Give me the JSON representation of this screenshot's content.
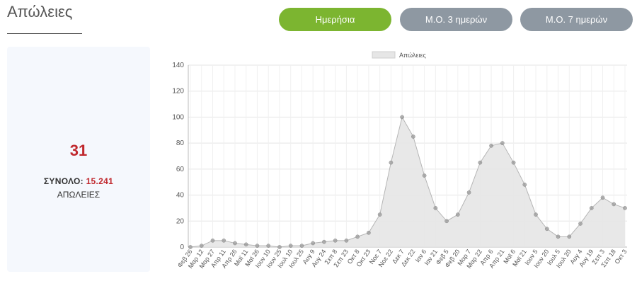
{
  "header": {
    "title": "Απώλειες"
  },
  "tabs": [
    {
      "label": "Ημερήσια",
      "active": true
    },
    {
      "label": "Μ.Ο. 3 ημερών",
      "active": false
    },
    {
      "label": "Μ.Ο. 7 ημερών",
      "active": false
    }
  ],
  "colors": {
    "active_tab": "#7cb530",
    "inactive_tab": "#8e98a2",
    "highlight": "#c0282d",
    "series_fill": "#e6e6e6",
    "series_point": "#9a9a9a"
  },
  "stats": {
    "value": "31",
    "total_label": "ΣΥΝΟΛΟ:",
    "total_value": "15.241",
    "caption": "ΑΠΩΛΕΙΕΣ"
  },
  "chart_data": {
    "type": "area",
    "legend": "top",
    "grid": true,
    "ylim": [
      0,
      140
    ],
    "yticks": [
      0,
      20,
      40,
      60,
      80,
      100,
      120,
      140
    ],
    "categories": [
      "Φεβ 26",
      "Μαρ 12",
      "Μαρ 27",
      "Απρ 11",
      "Απρ 26",
      "Μαϊ 11",
      "Μαϊ 26",
      "Ιουν 10",
      "Ιουν 25",
      "Ιουλ 10",
      "Ιουλ 25",
      "Αυγ 9",
      "Αυγ 24",
      "Σεπ 8",
      "Σεπ 23",
      "Οκτ 8",
      "Οκτ 23",
      "Νοε 7",
      "Νοε 22",
      "Δεκ 7",
      "Δεκ 22",
      "Ιαν 6",
      "Ιαν 21",
      "Φεβ 5",
      "Φεβ 20",
      "Μαρ 7",
      "Μαρ 22",
      "Απρ 6",
      "Απρ 21",
      "Μαϊ 6",
      "Μαϊ 21",
      "Ιουν 5",
      "Ιουν 20",
      "Ιουλ 5",
      "Ιουλ 20",
      "Αυγ 4",
      "Αυγ 19",
      "Σεπ 3",
      "Σεπ 18",
      "Οκτ 3"
    ],
    "series": [
      {
        "name": "Απώλειες",
        "values": [
          0,
          1,
          5,
          5,
          3,
          2,
          1,
          1,
          0,
          1,
          1,
          3,
          4,
          5,
          5,
          8,
          11,
          25,
          65,
          100,
          85,
          55,
          30,
          20,
          25,
          42,
          65,
          78,
          80,
          65,
          48,
          25,
          14,
          8,
          8,
          18,
          30,
          38,
          33,
          30
        ]
      }
    ]
  }
}
